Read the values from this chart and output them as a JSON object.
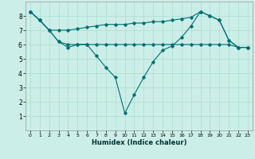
{
  "xlabel": "Humidex (Indice chaleur)",
  "bg_color": "#cceee8",
  "grid_color": "#aaddcc",
  "line_color": "#007070",
  "series1_x": [
    0,
    1,
    2,
    3,
    4,
    5,
    6,
    7,
    8,
    9,
    10,
    11,
    12,
    13,
    14,
    15,
    16,
    17,
    18,
    19,
    20,
    21,
    22,
    23
  ],
  "series1_y": [
    8.3,
    7.7,
    7.0,
    6.2,
    5.8,
    6.0,
    6.0,
    5.2,
    4.4,
    3.7,
    1.2,
    2.5,
    3.7,
    4.8,
    5.6,
    5.9,
    6.5,
    7.3,
    8.3,
    8.0,
    7.7,
    6.3,
    5.8,
    5.8
  ],
  "series2_x": [
    0,
    1,
    2,
    3,
    4,
    5,
    6,
    7,
    8,
    9,
    10,
    11,
    12,
    13,
    14,
    15,
    16,
    17,
    18,
    19,
    20,
    21,
    22,
    23
  ],
  "series2_y": [
    8.3,
    7.7,
    7.0,
    6.2,
    6.0,
    6.0,
    6.0,
    6.0,
    6.0,
    6.0,
    6.0,
    6.0,
    6.0,
    6.0,
    6.0,
    6.0,
    6.0,
    6.0,
    6.0,
    6.0,
    6.0,
    6.0,
    5.8,
    5.8
  ],
  "series3_x": [
    0,
    1,
    2,
    3,
    4,
    5,
    6,
    7,
    8,
    9,
    10,
    11,
    12,
    13,
    14,
    15,
    16,
    17,
    18,
    19,
    20,
    21,
    22,
    23
  ],
  "series3_y": [
    8.3,
    7.7,
    7.0,
    7.0,
    7.0,
    7.1,
    7.2,
    7.3,
    7.4,
    7.4,
    7.4,
    7.5,
    7.5,
    7.6,
    7.6,
    7.7,
    7.8,
    7.9,
    8.3,
    8.0,
    7.7,
    6.3,
    5.8,
    5.8
  ],
  "xlim": [
    -0.5,
    23.5
  ],
  "ylim": [
    0,
    9
  ],
  "xticks": [
    0,
    1,
    2,
    3,
    4,
    5,
    6,
    7,
    8,
    9,
    10,
    11,
    12,
    13,
    14,
    15,
    16,
    17,
    18,
    19,
    20,
    21,
    22,
    23
  ],
  "yticks": [
    1,
    2,
    3,
    4,
    5,
    6,
    7,
    8
  ]
}
